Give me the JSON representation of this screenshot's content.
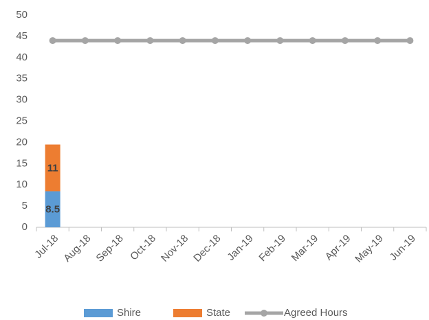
{
  "chart_data": {
    "type": "bar",
    "categories": [
      "Jul-18",
      "Aug-18",
      "Sep-18",
      "Oct-18",
      "Nov-18",
      "Dec-18",
      "Jan-19",
      "Feb-19",
      "Mar-19",
      "Apr-19",
      "May-19",
      "Jun-19"
    ],
    "series": [
      {
        "name": "Shire",
        "color": "#5b9bd5",
        "type": "bar",
        "values": [
          8.5,
          null,
          null,
          null,
          null,
          null,
          null,
          null,
          null,
          null,
          null,
          null
        ]
      },
      {
        "name": "State",
        "color": "#ed7d31",
        "type": "bar",
        "values": [
          11,
          null,
          null,
          null,
          null,
          null,
          null,
          null,
          null,
          null,
          null,
          null
        ]
      },
      {
        "name": "Agreed Hours",
        "color": "#a5a5a5",
        "type": "line",
        "values": [
          44,
          44,
          44,
          44,
          44,
          44,
          44,
          44,
          44,
          44,
          44,
          44
        ]
      }
    ],
    "stacked": true,
    "ylim": [
      0,
      50
    ],
    "yticks": [
      0,
      5,
      10,
      15,
      20,
      25,
      30,
      35,
      40,
      45,
      50
    ],
    "grid": false,
    "legend": "bottom"
  }
}
